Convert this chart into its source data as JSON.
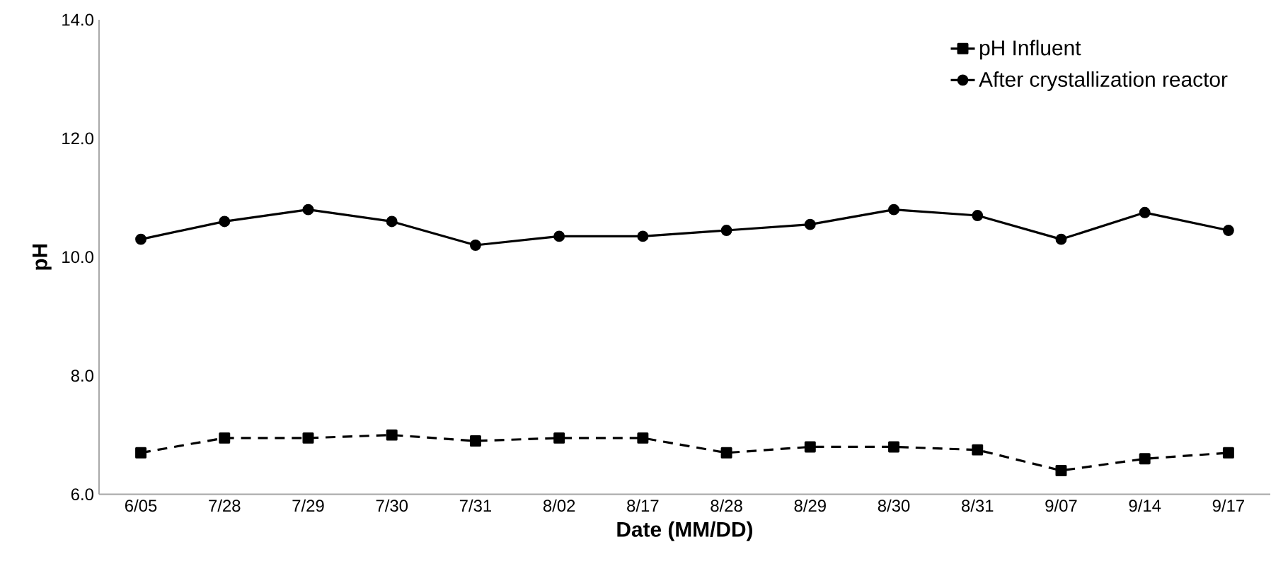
{
  "chart_data": {
    "type": "line",
    "xlabel": "Date (MM/DD)",
    "ylabel": "pH",
    "categories": [
      "6/05",
      "7/28",
      "7/29",
      "7/30",
      "7/31",
      "8/02",
      "8/17",
      "8/28",
      "8/29",
      "8/30",
      "8/31",
      "9/07",
      "9/14",
      "9/17"
    ],
    "series": [
      {
        "name": "pH Influent",
        "color": "#000000",
        "marker": "square",
        "line_style": "dashed",
        "values": [
          6.7,
          6.95,
          6.95,
          7.0,
          6.9,
          6.95,
          6.95,
          6.7,
          6.8,
          6.8,
          6.75,
          6.4,
          6.6,
          6.7
        ]
      },
      {
        "name": "After crystallization reactor",
        "color": "#000000",
        "marker": "circle",
        "line_style": "solid",
        "values": [
          10.3,
          10.6,
          10.8,
          10.6,
          10.2,
          10.35,
          10.35,
          10.45,
          10.55,
          10.8,
          10.7,
          10.3,
          10.75,
          10.45
        ]
      }
    ],
    "ylim": [
      6,
      14
    ],
    "yticks": [
      {
        "value": 6,
        "label": "6.0"
      },
      {
        "value": 8,
        "label": "8.0"
      },
      {
        "value": 10,
        "label": "10.0"
      },
      {
        "value": 12,
        "label": "12.0"
      },
      {
        "value": 14,
        "label": "14.0"
      }
    ],
    "grid": false,
    "legend": "top right"
  }
}
